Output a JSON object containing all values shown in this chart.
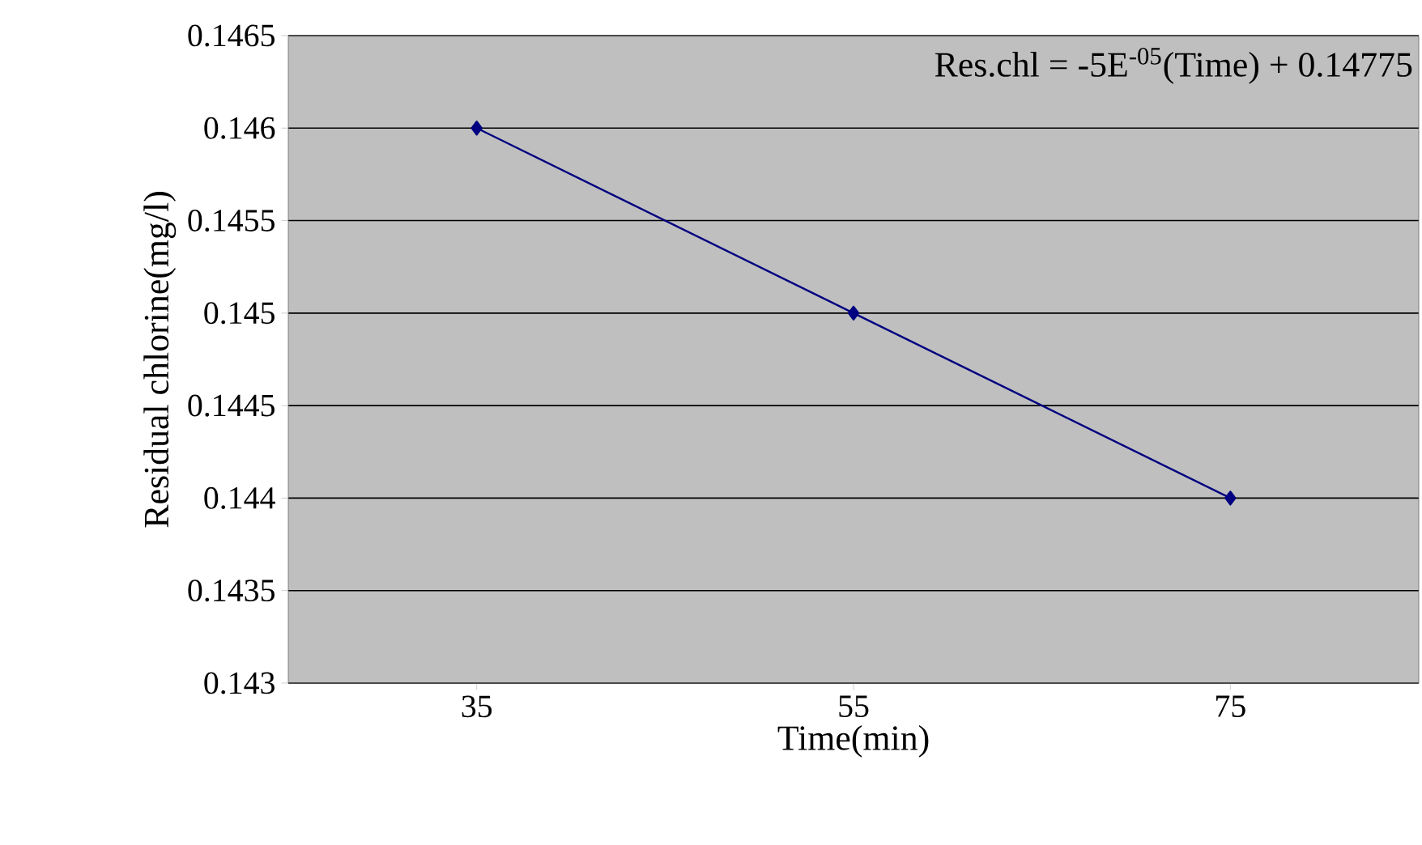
{
  "chart_data": {
    "type": "line",
    "xlabel": "Time(min)",
    "ylabel": "Residual chlorine(mg/l)",
    "categories": [
      "35",
      "55",
      "75"
    ],
    "series": [
      {
        "color": "#000080",
        "values": [
          0.146,
          0.145,
          0.144
        ]
      }
    ],
    "ylim": [
      0.143,
      0.1465
    ],
    "yticks": [
      0.143,
      0.1435,
      0.144,
      0.1445,
      0.145,
      0.1455,
      0.146,
      0.1465
    ],
    "grid": "y",
    "marker": "diamond",
    "line_style": "solid",
    "annotations": [
      "Res.chl = -5E$^{-05}$(Time) + 0.14775"
    ]
  }
}
